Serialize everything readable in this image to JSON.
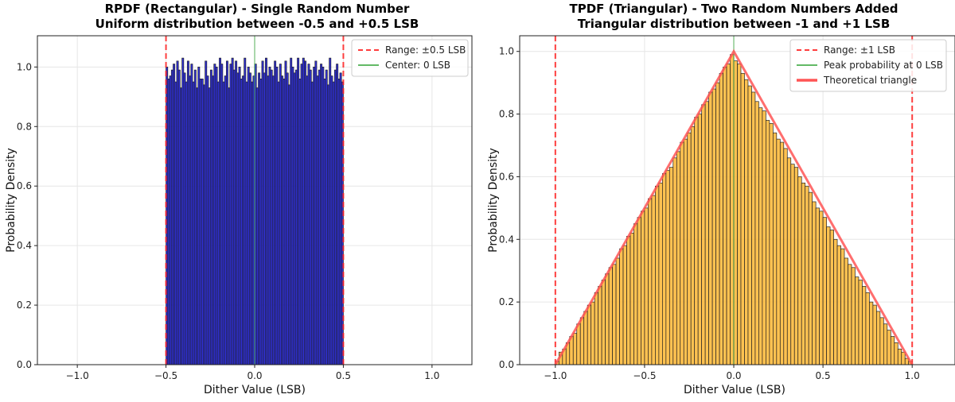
{
  "chart_data": [
    {
      "type": "bar",
      "title": "RPDF (Rectangular) - Single Random Number",
      "subtitle": "Uniform distribution between -0.5 and +0.5 LSB",
      "xlabel": "Dither Value (LSB)",
      "ylabel": "Probability Density",
      "xlim": [
        -1.225,
        1.225
      ],
      "ylim": [
        0,
        1.105
      ],
      "xticks": [
        -1.0,
        -0.5,
        0.0,
        0.5,
        1.0
      ],
      "xtick_labels": [
        "−1.0",
        "−0.5",
        "0.0",
        "0.5",
        "1.0"
      ],
      "yticks": [
        0.0,
        0.2,
        0.4,
        0.6,
        0.8,
        1.0
      ],
      "ytick_labels": [
        "0.0",
        "0.2",
        "0.4",
        "0.6",
        "0.8",
        "1.0"
      ],
      "grid": true,
      "bins": {
        "start": -0.5,
        "end": 0.5,
        "count": 100
      },
      "bar_color": "#1a1adb",
      "values": [
        1.0,
        0.96,
        0.97,
        0.99,
        1.01,
        0.95,
        1.02,
        0.99,
        0.93,
        1.03,
        0.98,
        0.95,
        1.02,
        0.97,
        1.01,
        0.95,
        0.99,
        0.93,
        1.0,
        0.96,
        0.96,
        0.94,
        1.02,
        0.97,
        0.93,
        0.99,
        0.97,
        1.01,
        1.0,
        0.95,
        1.03,
        1.01,
        0.95,
        0.97,
        1.02,
        0.93,
        1.01,
        1.03,
        0.99,
        1.02,
        0.98,
        1.0,
        0.96,
        0.97,
        1.03,
        0.95,
        1.0,
        0.98,
        0.95,
        0.97,
        1.01,
        0.93,
        0.98,
        0.96,
        1.02,
        0.98,
        1.03,
        0.97,
        1.0,
        0.99,
        0.97,
        1.02,
        1.0,
        0.95,
        1.01,
        0.97,
        0.96,
        1.02,
        0.98,
        0.94,
        1.03,
        1.0,
        0.98,
        0.99,
        1.03,
        0.96,
        1.01,
        1.03,
        1.02,
        0.97,
        1.01,
        0.99,
        0.95,
        1.0,
        1.02,
        0.97,
        0.99,
        1.01,
        1.0,
        0.96,
        0.99,
        0.94,
        1.03,
        0.97,
        0.95,
        0.99,
        1.01,
        0.96,
        0.98,
        0.95
      ],
      "reference_lines": [
        {
          "label": "Range: ±0.5 LSB",
          "style": "dashed",
          "color": "#ff2020",
          "x": [
            -0.5,
            0.5
          ]
        },
        {
          "label": "Center: 0 LSB",
          "style": "solid",
          "color": "#4caf50",
          "x": [
            0
          ]
        }
      ],
      "legend": "top-right"
    },
    {
      "type": "bar",
      "title": "TPDF (Triangular) - Two Random Numbers Added",
      "subtitle": "Triangular distribution between -1 and +1 LSB",
      "xlabel": "Dither Value (LSB)",
      "ylabel": "Probability Density",
      "xlim": [
        -1.2,
        1.24
      ],
      "ylim": [
        0,
        1.05
      ],
      "xticks": [
        -1.0,
        -0.5,
        0.0,
        0.5,
        1.0
      ],
      "xtick_labels": [
        "−1.0",
        "−0.5",
        "0.0",
        "0.5",
        "1.0"
      ],
      "yticks": [
        0.0,
        0.2,
        0.4,
        0.6,
        0.8,
        1.0
      ],
      "ytick_labels": [
        "0.0",
        "0.2",
        "0.4",
        "0.6",
        "0.8",
        "1.0"
      ],
      "grid": true,
      "bins": {
        "start": -1.0,
        "end": 1.0,
        "count": 100
      },
      "bar_color": "#ffb733",
      "values": [
        0.01,
        0.04,
        0.05,
        0.07,
        0.09,
        0.1,
        0.13,
        0.15,
        0.17,
        0.19,
        0.2,
        0.23,
        0.25,
        0.27,
        0.29,
        0.31,
        0.32,
        0.34,
        0.37,
        0.38,
        0.41,
        0.42,
        0.45,
        0.47,
        0.49,
        0.5,
        0.53,
        0.54,
        0.57,
        0.58,
        0.61,
        0.62,
        0.63,
        0.66,
        0.68,
        0.71,
        0.72,
        0.74,
        0.76,
        0.79,
        0.8,
        0.83,
        0.84,
        0.87,
        0.88,
        0.9,
        0.93,
        0.95,
        0.96,
        0.99,
        0.97,
        0.96,
        0.93,
        0.91,
        0.89,
        0.87,
        0.84,
        0.82,
        0.81,
        0.78,
        0.77,
        0.74,
        0.72,
        0.71,
        0.69,
        0.66,
        0.64,
        0.63,
        0.6,
        0.58,
        0.57,
        0.55,
        0.52,
        0.5,
        0.49,
        0.47,
        0.44,
        0.43,
        0.4,
        0.38,
        0.37,
        0.34,
        0.32,
        0.31,
        0.28,
        0.27,
        0.25,
        0.23,
        0.2,
        0.19,
        0.17,
        0.15,
        0.13,
        0.11,
        0.09,
        0.07,
        0.05,
        0.04,
        0.02,
        0.01
      ],
      "reference_lines": [
        {
          "label": "Range: ±1 LSB",
          "style": "dashed",
          "color": "#ff2020",
          "x": [
            -1,
            1
          ]
        },
        {
          "label": "Peak probability at 0 LSB",
          "style": "solid",
          "color": "#4caf50",
          "x": [
            0
          ]
        }
      ],
      "theoretical": {
        "label": "Theoretical triangle",
        "color": "#ff5555",
        "x": [
          -1,
          0,
          1
        ],
        "y": [
          0,
          1,
          0
        ]
      },
      "legend": "top-right"
    }
  ]
}
